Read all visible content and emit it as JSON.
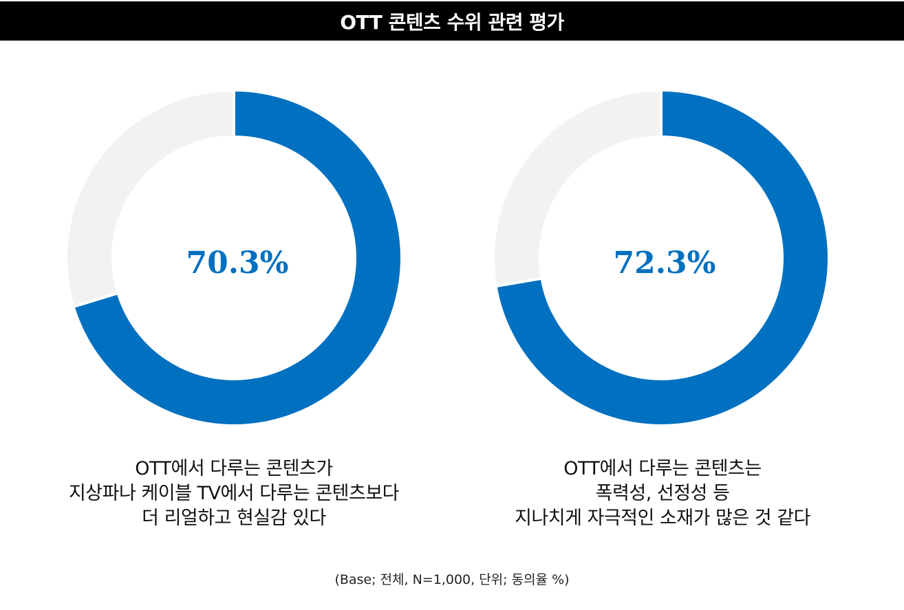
{
  "title": "OTT 콘텐츠 수위 관련 평가",
  "colors": {
    "filled": "#0070c0",
    "remainder": "#f2f2f2",
    "title_bg": "#000000"
  },
  "chart_data": [
    {
      "type": "pie",
      "variant": "donut",
      "value": 70.3,
      "value_label": "70.3%",
      "remainder": 29.7,
      "caption_lines": [
        "OTT에서 다루는 콘텐츠가",
        "지상파나 케이블 TV에서 다루는 콘텐츠보다",
        "더 리얼하고 현실감 있다"
      ]
    },
    {
      "type": "pie",
      "variant": "donut",
      "value": 72.3,
      "value_label": "72.3%",
      "remainder": 27.7,
      "caption_lines": [
        "OTT에서 다루는 콘텐츠는",
        "폭력성, 선정성 등",
        "지나치게 자극적인 소재가 많은 것 같다"
      ]
    }
  ],
  "note": "(Base; 전체, N=1,000, 단위; 동의율 %)"
}
